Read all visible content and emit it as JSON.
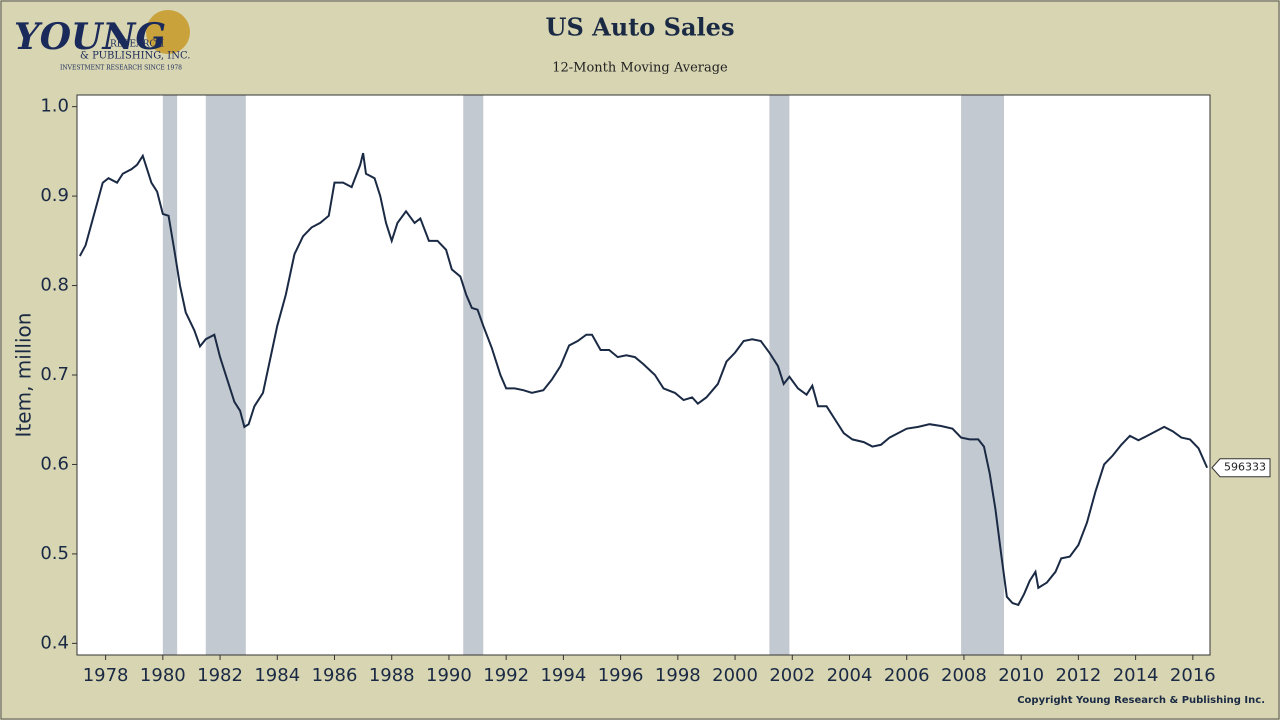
{
  "logo": {
    "name": "YOUNG",
    "line1": "RESEARCH",
    "line2": "& PUBLISHING, INC.",
    "tagline": "INVESTMENT RESEARCH SINCE 1978"
  },
  "chart_data": {
    "type": "line",
    "title": "US Auto Sales",
    "subtitle": "12-Month Moving Average",
    "y_label": "Item, million",
    "copyright": "Copyright Young Research & Publishing Inc.",
    "end_label": "596333",
    "xlim": [
      1977.0,
      2016.6
    ],
    "ylim": [
      0.387,
      1.013
    ],
    "xticks": [
      1978,
      1980,
      1982,
      1984,
      1986,
      1988,
      1990,
      1992,
      1994,
      1996,
      1998,
      2000,
      2002,
      2004,
      2006,
      2008,
      2010,
      2012,
      2014,
      2016
    ],
    "yticks": [
      0.4,
      0.5,
      0.6,
      0.7,
      0.8,
      0.9,
      {
        "value": 1,
        "label": "1.0"
      }
    ],
    "recessions": [
      [
        1980.0,
        1980.5
      ],
      [
        1981.5,
        1982.9
      ],
      [
        1990.5,
        1991.2
      ],
      [
        2001.2,
        2001.9
      ],
      [
        2007.9,
        2009.4
      ]
    ],
    "recession_color": "#c3c9d1",
    "x": [
      1977.1,
      1977.3,
      1977.6,
      1977.9,
      1978.1,
      1978.4,
      1978.6,
      1978.9,
      1979.1,
      1979.3,
      1979.6,
      1979.8,
      1980.0,
      1980.2,
      1980.4,
      1980.6,
      1980.8,
      1981.1,
      1981.3,
      1981.5,
      1981.8,
      1982.0,
      1982.3,
      1982.5,
      1982.7,
      1982.85,
      1983.0,
      1983.2,
      1983.5,
      1983.8,
      1984.0,
      1984.3,
      1984.6,
      1984.9,
      1985.2,
      1985.5,
      1985.8,
      1986.0,
      1986.3,
      1986.6,
      1986.9,
      1987.0,
      1987.1,
      1987.4,
      1987.6,
      1987.8,
      1988.0,
      1988.2,
      1988.5,
      1988.8,
      1989.0,
      1989.3,
      1989.6,
      1989.9,
      1990.1,
      1990.4,
      1990.6,
      1990.8,
      1991.0,
      1991.2,
      1991.5,
      1991.8,
      1992.0,
      1992.3,
      1992.6,
      1992.9,
      1993.3,
      1993.6,
      1993.9,
      1994.2,
      1994.5,
      1994.8,
      1995.0,
      1995.3,
      1995.6,
      1995.9,
      1996.2,
      1996.5,
      1996.8,
      1997.2,
      1997.5,
      1997.9,
      1998.2,
      1998.5,
      1998.7,
      1999.0,
      1999.4,
      1999.7,
      2000.0,
      2000.3,
      2000.6,
      2000.9,
      2001.2,
      2001.5,
      2001.7,
      2001.9,
      2002.2,
      2002.5,
      2002.7,
      2002.9,
      2003.2,
      2003.5,
      2003.8,
      2004.1,
      2004.5,
      2004.8,
      2005.1,
      2005.4,
      2005.7,
      2006.0,
      2006.4,
      2006.8,
      2007.2,
      2007.6,
      2007.9,
      2008.2,
      2008.5,
      2008.7,
      2008.9,
      2009.1,
      2009.3,
      2009.5,
      2009.7,
      2009.9,
      2010.1,
      2010.3,
      2010.5,
      2010.6,
      2010.9,
      2011.2,
      2011.4,
      2011.7,
      2012.0,
      2012.3,
      2012.6,
      2012.9,
      2013.2,
      2013.5,
      2013.8,
      2014.1,
      2014.4,
      2014.7,
      2015.0,
      2015.3,
      2015.6,
      2015.9,
      2016.2,
      2016.5
    ],
    "series": [
      {
        "color": "#1b2a44",
        "values": [
          0.833,
          0.845,
          0.88,
          0.915,
          0.92,
          0.915,
          0.925,
          0.93,
          0.935,
          0.945,
          0.915,
          0.905,
          0.88,
          0.878,
          0.84,
          0.8,
          0.77,
          0.75,
          0.732,
          0.74,
          0.745,
          0.72,
          0.69,
          0.67,
          0.66,
          0.642,
          0.645,
          0.665,
          0.68,
          0.725,
          0.755,
          0.79,
          0.835,
          0.855,
          0.865,
          0.87,
          0.878,
          0.915,
          0.915,
          0.91,
          0.935,
          0.948,
          0.925,
          0.92,
          0.9,
          0.87,
          0.85,
          0.87,
          0.883,
          0.87,
          0.875,
          0.85,
          0.85,
          0.84,
          0.818,
          0.81,
          0.79,
          0.775,
          0.773,
          0.755,
          0.73,
          0.7,
          0.685,
          0.685,
          0.683,
          0.68,
          0.683,
          0.695,
          0.71,
          0.733,
          0.738,
          0.745,
          0.745,
          0.728,
          0.728,
          0.72,
          0.722,
          0.72,
          0.712,
          0.7,
          0.685,
          0.68,
          0.672,
          0.675,
          0.668,
          0.675,
          0.69,
          0.715,
          0.725,
          0.738,
          0.74,
          0.738,
          0.725,
          0.71,
          0.69,
          0.698,
          0.685,
          0.678,
          0.688,
          0.665,
          0.665,
          0.65,
          0.635,
          0.628,
          0.625,
          0.62,
          0.622,
          0.63,
          0.635,
          0.64,
          0.642,
          0.645,
          0.643,
          0.64,
          0.63,
          0.628,
          0.628,
          0.62,
          0.59,
          0.55,
          0.5,
          0.452,
          0.445,
          0.443,
          0.455,
          0.47,
          0.48,
          0.462,
          0.468,
          0.48,
          0.495,
          0.497,
          0.51,
          0.535,
          0.57,
          0.6,
          0.61,
          0.622,
          0.632,
          0.627,
          0.632,
          0.637,
          0.642,
          0.637,
          0.63,
          0.628,
          0.618,
          0.596333
        ]
      }
    ]
  }
}
